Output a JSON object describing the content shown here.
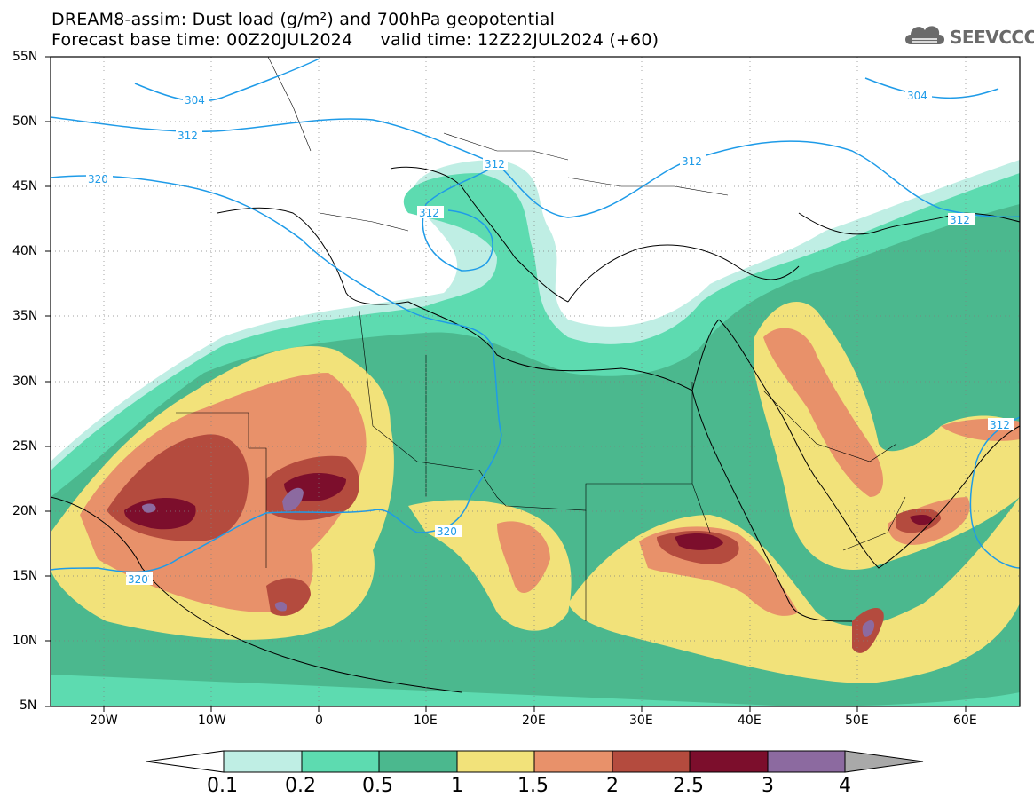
{
  "title": {
    "line1": "DREAM8-assim: Dust load (g/m²) and 700hPa geopotential",
    "line2": "Forecast base time: 00Z20JUL2024     valid time: 12Z22JUL2024 (+60)"
  },
  "logo": {
    "text": "SEEVCCC",
    "icon": "cloud-icon"
  },
  "axes": {
    "lat_labels": [
      "55N",
      "50N",
      "45N",
      "40N",
      "35N",
      "30N",
      "25N",
      "20N",
      "15N",
      "10N",
      "5N"
    ],
    "lon_labels": [
      "20W",
      "10W",
      "0",
      "10E",
      "20E",
      "30E",
      "40E",
      "50E",
      "60E"
    ]
  },
  "contours": [
    "304",
    "312",
    "320"
  ],
  "colorbar": {
    "labels": [
      "0.1",
      "0.2",
      "0.5",
      "1",
      "1.5",
      "2",
      "2.5",
      "3",
      "4"
    ],
    "colors": [
      "#bfeee4",
      "#5ddbb0",
      "#4bb88e",
      "#f2e27a",
      "#e8916a",
      "#b44b3e",
      "#7c0e2c",
      "#8c6aa0"
    ]
  },
  "palette": {
    "contour_line": "#1e9be8",
    "above_max": "#a9a9a9",
    "below_min": "#ffffff"
  }
}
